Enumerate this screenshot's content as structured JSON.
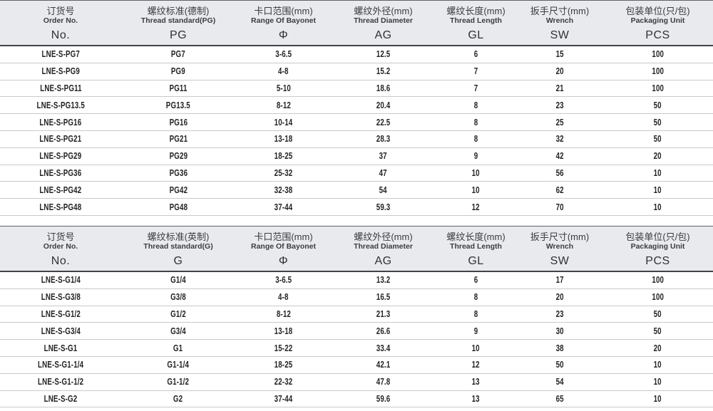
{
  "theme": {
    "header_bg": "#e8eaed",
    "header_border_top": "#5f6367",
    "header_border_bottom": "#404346",
    "row_divider": "#c7c9cb",
    "text_dark": "#232425"
  },
  "tables": [
    {
      "name": "metric-pg-thread-table",
      "columns": [
        {
          "key": "order-no",
          "zh": "订货号",
          "en": "Order No.",
          "code": "No."
        },
        {
          "key": "thread-standard",
          "zh": "螺纹标准(德制)",
          "en": "Thread standard(PG)",
          "code": "PG"
        },
        {
          "key": "bayonet-range",
          "zh": "卡口范围(mm)",
          "en": "Range Of Bayonet",
          "code": "Φ"
        },
        {
          "key": "thread-diameter",
          "zh": "螺纹外径(mm)",
          "en": "Thread Diameter",
          "code": "AG"
        },
        {
          "key": "thread-length",
          "zh": "螺纹长度(mm)",
          "en": "Thread Length",
          "code": "GL"
        },
        {
          "key": "wrench-size",
          "zh": "扳手尺寸(mm)",
          "en": "Wrench",
          "code": "SW"
        },
        {
          "key": "packaging-unit",
          "zh": "包装单位(只/包)",
          "en": "Packaging Unit",
          "code": "PCS"
        }
      ],
      "rows": [
        [
          "LNE-S-PG7",
          "PG7",
          "3-6.5",
          "12.5",
          "6",
          "15",
          "100"
        ],
        [
          "LNE-S-PG9",
          "PG9",
          "4-8",
          "15.2",
          "7",
          "20",
          "100"
        ],
        [
          "LNE-S-PG11",
          "PG11",
          "5-10",
          "18.6",
          "7",
          "21",
          "100"
        ],
        [
          "LNE-S-PG13.5",
          "PG13.5",
          "8-12",
          "20.4",
          "8",
          "23",
          "50"
        ],
        [
          "LNE-S-PG16",
          "PG16",
          "10-14",
          "22.5",
          "8",
          "25",
          "50"
        ],
        [
          "LNE-S-PG21",
          "PG21",
          "13-18",
          "28.3",
          "8",
          "32",
          "50"
        ],
        [
          "LNE-S-PG29",
          "PG29",
          "18-25",
          "37",
          "9",
          "42",
          "20"
        ],
        [
          "LNE-S-PG36",
          "PG36",
          "25-32",
          "47",
          "10",
          "56",
          "10"
        ],
        [
          "LNE-S-PG42",
          "PG42",
          "32-38",
          "54",
          "10",
          "62",
          "10"
        ],
        [
          "LNE-S-PG48",
          "PG48",
          "37-44",
          "59.3",
          "12",
          "70",
          "10"
        ]
      ]
    },
    {
      "name": "imperial-g-thread-table",
      "columns": [
        {
          "key": "order-no",
          "zh": "订货号",
          "en": "Order No.",
          "code": "No."
        },
        {
          "key": "thread-standard",
          "zh": "螺纹标准(英制)",
          "en": "Thread standard(G)",
          "code": "G"
        },
        {
          "key": "bayonet-range",
          "zh": "卡口范围(mm)",
          "en": "Range Of Bayonet",
          "code": "Φ"
        },
        {
          "key": "thread-diameter",
          "zh": "螺纹外径(mm)",
          "en": "Thread Diameter",
          "code": "AG"
        },
        {
          "key": "thread-length",
          "zh": "螺纹长度(mm)",
          "en": "Thread Length",
          "code": "GL"
        },
        {
          "key": "wrench-size",
          "zh": "扳手尺寸(mm)",
          "en": "Wrench",
          "code": "SW"
        },
        {
          "key": "packaging-unit",
          "zh": "包装单位(只/包)",
          "en": "Packaging Unit",
          "code": "PCS"
        }
      ],
      "rows": [
        [
          "LNE-S-G1/4",
          "G1/4",
          "3-6.5",
          "13.2",
          "6",
          "17",
          "100"
        ],
        [
          "LNE-S-G3/8",
          "G3/8",
          "4-8",
          "16.5",
          "8",
          "20",
          "100"
        ],
        [
          "LNE-S-G1/2",
          "G1/2",
          "8-12",
          "21.3",
          "8",
          "23",
          "50"
        ],
        [
          "LNE-S-G3/4",
          "G3/4",
          "13-18",
          "26.6",
          "9",
          "30",
          "50"
        ],
        [
          "LNE-S-G1",
          "G1",
          "15-22",
          "33.4",
          "10",
          "38",
          "20"
        ],
        [
          "LNE-S-G1-1/4",
          "G1-1/4",
          "18-25",
          "42.1",
          "12",
          "50",
          "10"
        ],
        [
          "LNE-S-G1-1/2",
          "G1-1/2",
          "22-32",
          "47.8",
          "13",
          "54",
          "10"
        ],
        [
          "LNE-S-G2",
          "G2",
          "37-44",
          "59.6",
          "13",
          "65",
          "10"
        ]
      ]
    }
  ]
}
